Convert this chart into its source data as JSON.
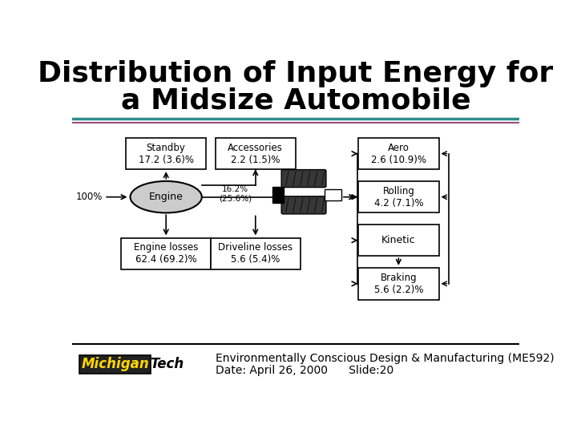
{
  "title_line1": "Distribution of Input Energy for",
  "title_line2": "a Midsize Automobile",
  "title_fontsize": 26,
  "bg_color": "#ffffff",
  "footer_line1": "Environmentally Conscious Design & Manufacturing (ME592)",
  "footer_line2": "Date: April 26, 2000      Slide:20",
  "footer_fontsize": 10,
  "sep_color1": "#2e8b8b",
  "sep_color2": "#9b4e7a",
  "input_label": "100%",
  "middle_label": "16.2%\n(25.6%)"
}
